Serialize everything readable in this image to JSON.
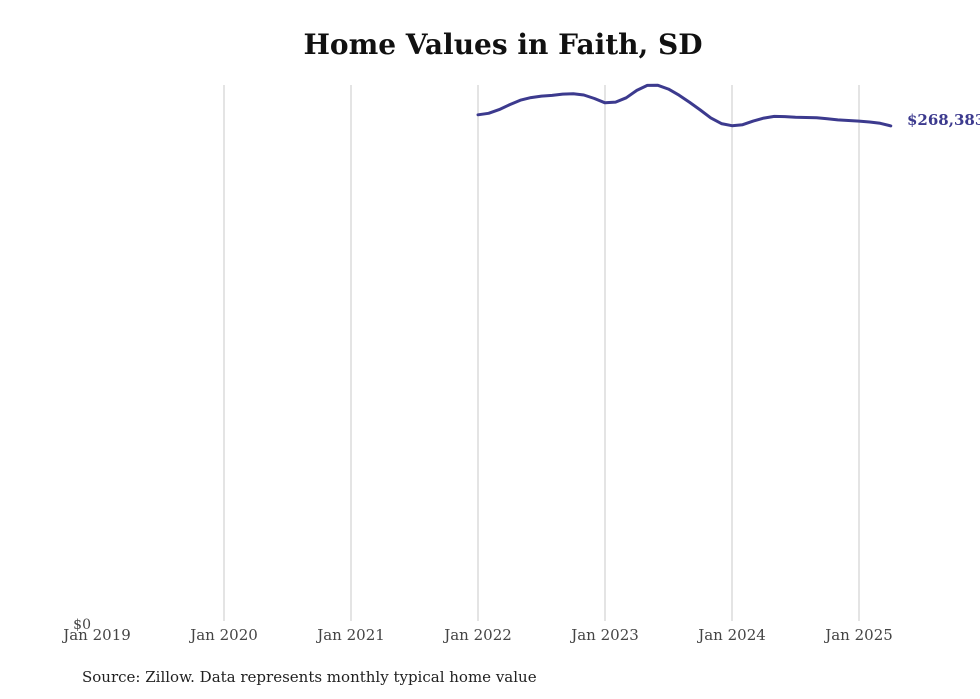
{
  "chart_data": {
    "type": "line",
    "title": "Home Values in Faith, SD",
    "source": "Source: Zillow. Data represents monthly typical home value",
    "x_ticks": [
      "Jan 2019",
      "Jan 2020",
      "Jan 2021",
      "Jan 2022",
      "Jan 2023",
      "Jan 2024",
      "Jan 2025"
    ],
    "y_ticks": [
      "$0"
    ],
    "ylim": [
      0,
      290000
    ],
    "xlim": [
      "2019-01",
      "2025-05"
    ],
    "grid": "vertical",
    "series": [
      {
        "color": "#3c3a8e",
        "end_label": "$268,383",
        "x": [
          "2022-01",
          "2022-02",
          "2022-03",
          "2022-04",
          "2022-05",
          "2022-06",
          "2022-07",
          "2022-08",
          "2022-09",
          "2022-10",
          "2022-11",
          "2022-12",
          "2023-01",
          "2023-02",
          "2023-03",
          "2023-04",
          "2023-05",
          "2023-06",
          "2023-07",
          "2023-08",
          "2023-09",
          "2023-10",
          "2023-11",
          "2023-12",
          "2024-01",
          "2024-02",
          "2024-03",
          "2024-04",
          "2024-05",
          "2024-06",
          "2024-07",
          "2024-08",
          "2024-09",
          "2024-10",
          "2024-11",
          "2024-12",
          "2025-01",
          "2025-02",
          "2025-03",
          "2025-04"
        ],
        "values": [
          274400,
          275200,
          277200,
          279900,
          282300,
          283700,
          284500,
          284900,
          285600,
          285800,
          285100,
          283200,
          280900,
          281300,
          283600,
          287600,
          290300,
          290400,
          288300,
          285000,
          281100,
          277000,
          272700,
          269600,
          268500,
          269000,
          271000,
          272600,
          273500,
          273400,
          273100,
          272900,
          272800,
          272200,
          271600,
          271300,
          271000,
          270500,
          269800,
          268383
        ]
      }
    ]
  }
}
